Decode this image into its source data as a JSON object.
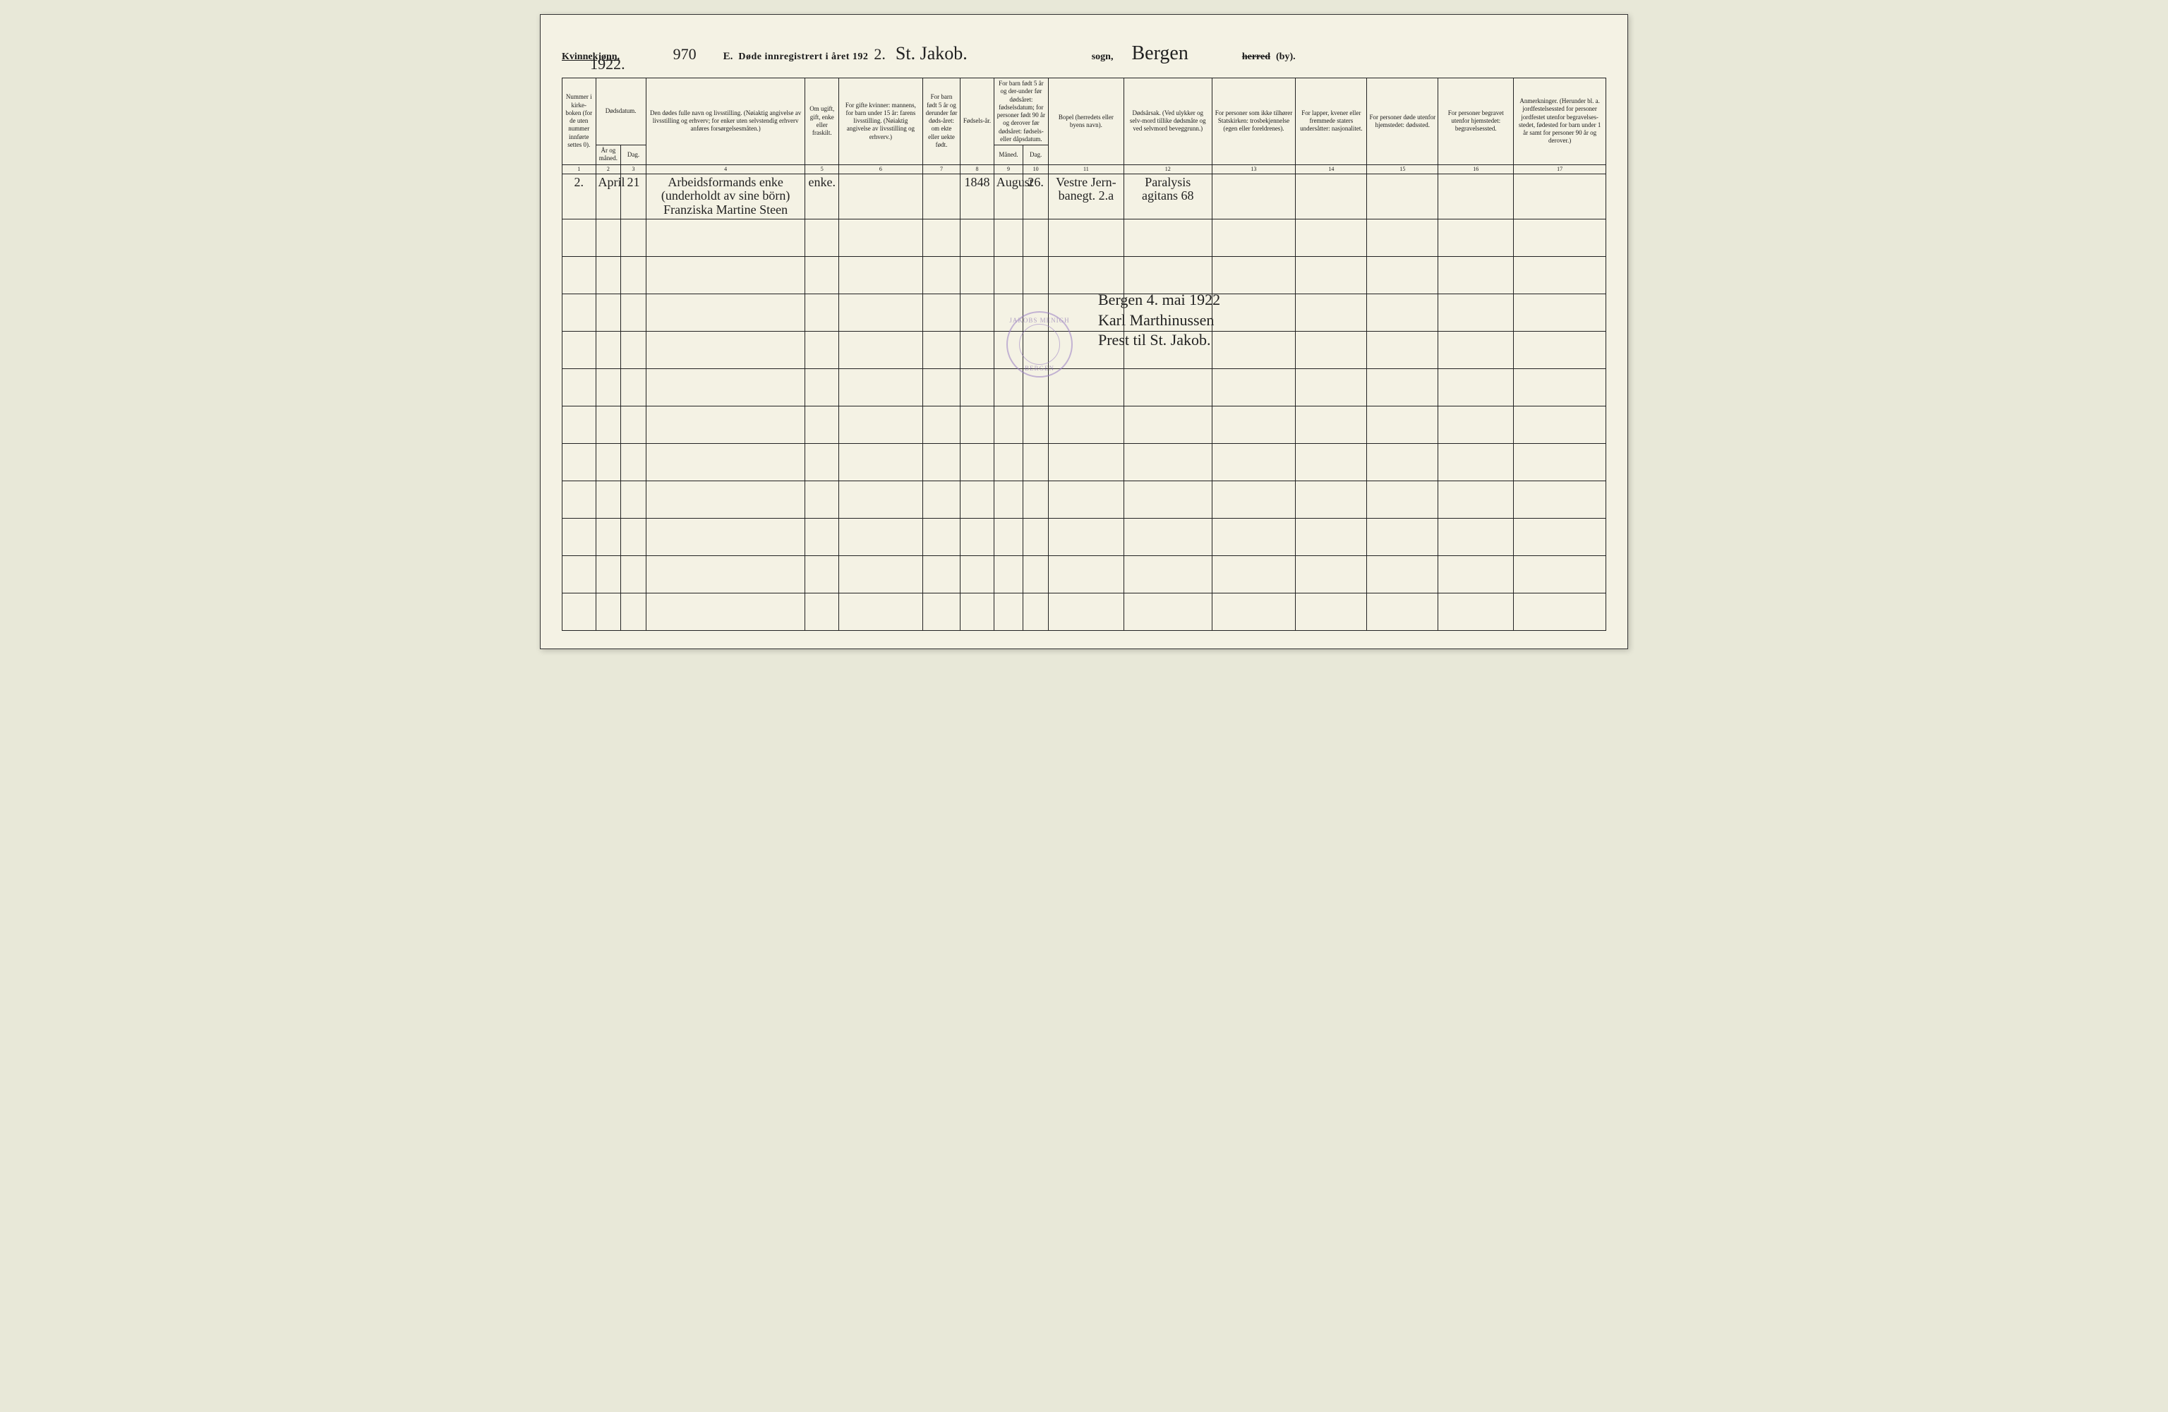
{
  "header": {
    "gender_label": "Kvinnekjønn.",
    "year_hand_left": "1922.",
    "page_number": "970",
    "section_letter": "E.",
    "title_printed": "Døde innregistrert i året 192",
    "year_suffix_hand": "2.",
    "parish_hand": "St. Jakob.",
    "sogn_label": "sogn,",
    "district_hand": "Bergen",
    "herred_label": "herred",
    "by_label": "(by)."
  },
  "columns": {
    "c1": "Nummer i kirke-boken (for de uten nummer innførte settes 0).",
    "c2_group": "Dødsdatum.",
    "c2": "År og måned.",
    "c3": "Dag.",
    "c4": "Den dødes fulle navn og livsstilling.\n(Nøiaktig angivelse av livsstilling og erhverv; for enker uten selvstendig erhverv anføres forsørgelsesmåten.)",
    "c5": "Om ugift, gift, enke eller fraskilt.",
    "c6": "For gifte kvinner: mannens, for barn under 15 år: farens livsstilling. (Nøiaktig angivelse av livsstilling og erhverv.)",
    "c7": "For barn født 5 år og derunder før døds-året: om ekte eller uekte født.",
    "c8": "Fødsels-år.",
    "c9_10_group": "For barn født 5 år og der-under før dødsåret: fødselsdatum; for personer født 90 år og derover før dødsåret: fødsels- eller dåpsdatum.",
    "c9": "Måned.",
    "c10": "Dag.",
    "c11": "Bopel (herredets eller byens navn).",
    "c12": "Dødsårsak.\n(Ved ulykker og selv-mord tillike dødsmåte og ved selvmord beveggrunn.)",
    "c13": "For personer som ikke tilhører Statskirken: trosbekjennelse (egen eller foreldrenes).",
    "c14": "For lapper, kvener eller fremmede staters undersåtter: nasjonalitet.",
    "c15": "For personer døde utenfor hjemstedet: dødssted.",
    "c16": "For personer begravet utenfor hjemstedet: begravelsessted.",
    "c17": "Anmerkninger.\n(Herunder bl. a. jordfestelsessted for personer jordfestet utenfor begravelses-stedet, fødested for barn under 1 år samt for personer 90 år og derover.)"
  },
  "colnums": [
    "1",
    "2",
    "3",
    "4",
    "5",
    "6",
    "7",
    "8",
    "9",
    "10",
    "11",
    "12",
    "13",
    "14",
    "15",
    "16",
    "17"
  ],
  "rows": [
    {
      "c1": "2.",
      "c2": "April",
      "c3": "21",
      "c4": "Arbeidsformands enke (underholdt av sine börn) Franziska Martine Steen",
      "c5": "enke.",
      "c6": "",
      "c7": "",
      "c8": "1848",
      "c9": "August",
      "c10": "26.",
      "c11": "Vestre Jern-banegt. 2.a",
      "c12": "Paralysis agitans 68",
      "c13": "",
      "c14": "",
      "c15": "",
      "c16": "",
      "c17": ""
    }
  ],
  "signature": {
    "line1": "Bergen 4. mai 1922",
    "line2": "Karl Marthinussen",
    "line3": "Prest til St. Jakob."
  },
  "stamp": {
    "top": "JAKOBS MENIGH",
    "bottom": "BERGEN"
  },
  "blank_rows_after": 11,
  "colors": {
    "paper": "#f4f2e4",
    "ink": "#1a1a1a",
    "stamp": "#9b7fc4"
  }
}
